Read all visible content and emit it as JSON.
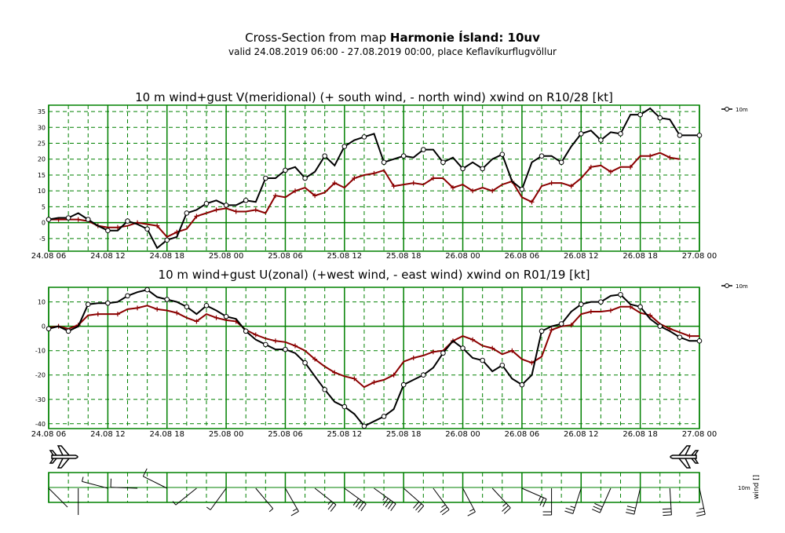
{
  "header": {
    "title_prefix": "Cross-Section from map",
    "title_bold": "Harmonie Ísland: 10uv",
    "subtitle": "valid 24.08.2019 06:00 - 27.08.2019 00:00, place Keflavíkurflugvöllur"
  },
  "colors": {
    "grid": "#008000",
    "wind": "#000000",
    "mean": "#8b0000"
  },
  "chart_data": [
    {
      "type": "line",
      "title": "10 m wind+gust V(meridional) (+ south wind, - north wind) xwind on R10/28 [kt]",
      "x_tick_labels": [
        "24.08 06",
        "24.08 12",
        "24.08 18",
        "25.08 00",
        "25.08 06",
        "25.08 12",
        "25.08 18",
        "26.08 00",
        "26.08 06",
        "26.08 12",
        "26.08 18",
        "27.08 00"
      ],
      "x_range_hours": [
        0,
        66
      ],
      "y_ticks": [
        35,
        30,
        25,
        20,
        15,
        10,
        5,
        0,
        -5
      ],
      "ylim": [
        -9,
        37
      ],
      "grid": true,
      "legend": "right",
      "series": [
        {
          "name": "10m",
          "marker": "circle",
          "color": "#000000",
          "x": [
            0,
            1,
            2,
            3,
            4,
            5,
            6,
            7,
            8,
            9,
            10,
            11,
            12,
            13,
            14,
            15,
            16,
            17,
            18,
            19,
            20,
            21,
            22,
            23,
            24,
            25,
            26,
            27,
            28,
            29,
            30,
            31,
            32,
            33,
            34,
            35,
            36,
            37,
            38,
            39,
            40,
            41,
            42,
            43,
            44,
            45,
            46,
            47,
            48,
            49,
            50,
            51,
            52,
            53,
            54,
            55,
            56,
            57,
            58,
            59,
            60,
            61,
            62,
            63,
            64,
            65,
            66
          ],
          "values": [
            1,
            1.5,
            1.5,
            3,
            1,
            -1,
            -2.5,
            -2.5,
            0.5,
            -0.5,
            -2,
            -8,
            -5.5,
            -4.5,
            3,
            4,
            6,
            7,
            5.5,
            5.5,
            7,
            6.5,
            14,
            14,
            16.5,
            17.5,
            14,
            16,
            21,
            18,
            24,
            26,
            27,
            28,
            19,
            20,
            21,
            20.5,
            23,
            23,
            19,
            20.5,
            17,
            19,
            17,
            20,
            21.5,
            13,
            10.5,
            19,
            21,
            21,
            19,
            24,
            28,
            29,
            26,
            28.5,
            28,
            34,
            34,
            36,
            33,
            32.5,
            27.5,
            27.5,
            27.5
          ]
        },
        {
          "name": "",
          "marker": "plus",
          "color": "#8b0000",
          "x": [
            0,
            1,
            2,
            3,
            4,
            5,
            6,
            7,
            8,
            9,
            10,
            11,
            12,
            13,
            14,
            15,
            16,
            17,
            18,
            19,
            20,
            21,
            22,
            23,
            24,
            25,
            26,
            27,
            28,
            29,
            30,
            31,
            32,
            33,
            34,
            35,
            36,
            37,
            38,
            39,
            40,
            41,
            42,
            43,
            44,
            45,
            46,
            47,
            48,
            49,
            50,
            51,
            52,
            53,
            54,
            55,
            56,
            57,
            58,
            59,
            60,
            61,
            62,
            63,
            64
          ],
          "values": [
            1,
            1,
            1,
            1,
            0.5,
            -1,
            -1.5,
            -1.5,
            -1,
            0,
            -0.5,
            -1,
            -4.5,
            -3,
            -2,
            2,
            3,
            4,
            4.5,
            3.5,
            3.5,
            4,
            3,
            8.5,
            8,
            10,
            11,
            8.5,
            9.5,
            12.5,
            11,
            14,
            15,
            15.5,
            16.5,
            11.5,
            12,
            12.5,
            12,
            14,
            14,
            11,
            12,
            10,
            11,
            10,
            12,
            13,
            8,
            6.5,
            11.5,
            12.5,
            12.5,
            11.5,
            14,
            17.5,
            18,
            16,
            17.5,
            17.5,
            21,
            21,
            22,
            20.5,
            20
          ]
        }
      ]
    },
    {
      "type": "line",
      "title": "10 m wind+gust U(zonal) (+west wind, - east wind) xwind on R01/19 [kt]",
      "x_tick_labels": [
        "24.08 06",
        "24.08 12",
        "24.08 18",
        "25.08 00",
        "25.08 06",
        "25.08 12",
        "25.08 18",
        "26.08 00",
        "26.08 06",
        "26.08 12",
        "26.08 18",
        "27.08 00"
      ],
      "x_range_hours": [
        0,
        66
      ],
      "y_ticks": [
        10,
        0,
        -10,
        -20,
        -30,
        -40
      ],
      "ylim": [
        -42,
        16
      ],
      "grid": true,
      "legend": "right",
      "series": [
        {
          "name": "10m",
          "marker": "circle",
          "color": "#000000",
          "x": [
            0,
            1,
            2,
            3,
            4,
            5,
            6,
            7,
            8,
            9,
            10,
            11,
            12,
            13,
            14,
            15,
            16,
            17,
            18,
            19,
            20,
            21,
            22,
            23,
            24,
            25,
            26,
            27,
            28,
            29,
            30,
            31,
            32,
            33,
            34,
            35,
            36,
            37,
            38,
            39,
            40,
            41,
            42,
            43,
            44,
            45,
            46,
            47,
            48,
            49,
            50,
            51,
            52,
            53,
            54,
            55,
            56,
            57,
            58,
            59,
            60,
            61,
            62,
            63,
            64,
            65,
            66
          ],
          "values": [
            -1,
            0,
            -2,
            0,
            9,
            9.5,
            9.5,
            10,
            12.5,
            14,
            15,
            12,
            11,
            10,
            8,
            5,
            8.5,
            6.5,
            4,
            3,
            -2,
            -5.5,
            -7.5,
            -9.5,
            -9.5,
            -11,
            -15,
            -20.5,
            -26,
            -31,
            -33,
            -36,
            -41,
            -39,
            -37,
            -34,
            -24,
            -22,
            -20,
            -17,
            -11,
            -6,
            -9,
            -13,
            -14,
            -18.5,
            -16,
            -21.5,
            -24,
            -20,
            -2,
            0,
            1,
            6,
            9,
            10,
            10,
            12.5,
            13,
            9,
            8,
            3,
            0,
            -2,
            -4.5,
            -6,
            -6
          ]
        },
        {
          "name": "",
          "marker": "plus",
          "color": "#8b0000",
          "x": [
            0,
            1,
            2,
            3,
            4,
            5,
            6,
            7,
            8,
            9,
            10,
            11,
            12,
            13,
            14,
            15,
            16,
            17,
            18,
            19,
            20,
            21,
            22,
            23,
            24,
            25,
            26,
            27,
            28,
            29,
            30,
            31,
            32,
            33,
            34,
            35,
            36,
            37,
            38,
            39,
            40,
            41,
            42,
            43,
            44,
            45,
            46,
            47,
            48,
            49,
            50,
            51,
            52,
            53,
            54,
            55,
            56,
            57,
            58,
            59,
            60,
            61,
            62,
            63,
            64,
            65,
            66
          ],
          "values": [
            -0.5,
            0,
            -1,
            0.5,
            4.5,
            5,
            5,
            5,
            7,
            7.5,
            8.5,
            7,
            6.5,
            5.5,
            3.5,
            2,
            5,
            3.5,
            2.5,
            2,
            -1.5,
            -3.5,
            -5,
            -6,
            -6.5,
            -8,
            -10,
            -13.5,
            -16.5,
            -19,
            -20.5,
            -21.5,
            -25,
            -23,
            -22,
            -20,
            -14.5,
            -13,
            -12,
            -10.5,
            -10,
            -6,
            -4,
            -5.5,
            -8,
            -9,
            -11.5,
            -10,
            -13.5,
            -15,
            -12.5,
            -1.5,
            0,
            0.5,
            5,
            6,
            6,
            6.5,
            8,
            8,
            5.5,
            4.5,
            1,
            -1,
            -2.5,
            -4,
            -4
          ]
        }
      ]
    }
  ],
  "wind_panel": {
    "legend_label": "10m",
    "axis_label": "wind []"
  }
}
